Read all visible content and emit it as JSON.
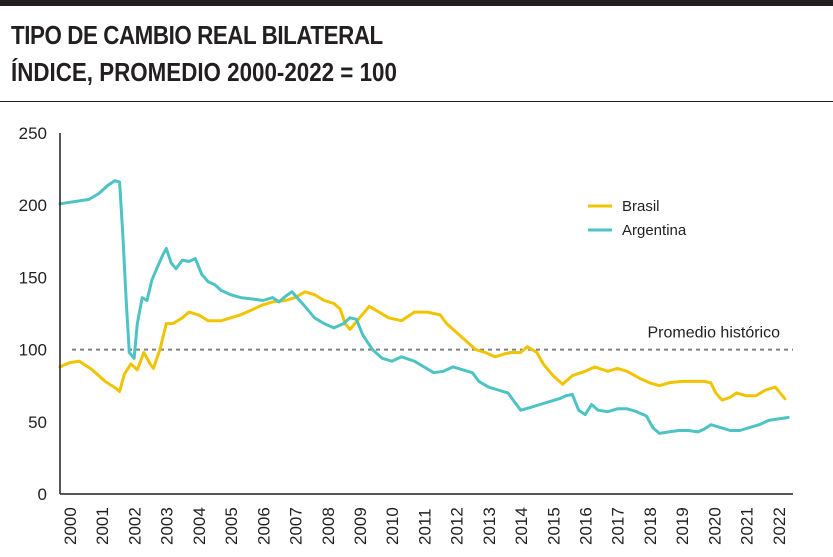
{
  "header": {
    "title": "TIPO DE CAMBIO REAL BILATERAL",
    "subtitle": "ÍNDICE, PROMEDIO 2000-2022 = 100"
  },
  "colors": {
    "brasil": "#f2c300",
    "argentina": "#4ec3c3",
    "axis": "#231f20",
    "reference": "#808080"
  },
  "chart_data": {
    "type": "line",
    "title": "TIPO DE CAMBIO REAL BILATERAL",
    "subtitle": "ÍNDICE, PROMEDIO 2000-2022 = 100",
    "xlabel": "",
    "ylabel": "",
    "xlim": [
      2000,
      2022.75
    ],
    "ylim": [
      0,
      250
    ],
    "yticks": [
      0,
      50,
      100,
      150,
      200,
      250
    ],
    "xticks": [
      "2000",
      "2001",
      "2002",
      "2003",
      "2004",
      "2005",
      "2006",
      "2007",
      "2008",
      "2009",
      "2010",
      "2011",
      "2012",
      "2013",
      "2014",
      "2015",
      "2016",
      "2017",
      "2018",
      "2019",
      "2020",
      "2021",
      "2022"
    ],
    "grid": false,
    "legend_position": "top-right",
    "reference_line": {
      "value": 100,
      "label": "Promedio histórico"
    },
    "series": [
      {
        "name": "Brasil",
        "color": "#f2c300",
        "points": [
          [
            2000.0,
            88
          ],
          [
            2000.3,
            91
          ],
          [
            2000.6,
            92
          ],
          [
            2001.0,
            86
          ],
          [
            2001.4,
            78
          ],
          [
            2001.75,
            73
          ],
          [
            2001.85,
            71
          ],
          [
            2002.0,
            83
          ],
          [
            2002.2,
            90
          ],
          [
            2002.4,
            86
          ],
          [
            2002.6,
            98
          ],
          [
            2002.8,
            90
          ],
          [
            2002.9,
            87
          ],
          [
            2003.1,
            100
          ],
          [
            2003.3,
            118
          ],
          [
            2003.5,
            118
          ],
          [
            2003.8,
            122
          ],
          [
            2004.0,
            126
          ],
          [
            2004.3,
            124
          ],
          [
            2004.6,
            120
          ],
          [
            2005.0,
            120
          ],
          [
            2005.3,
            122
          ],
          [
            2005.6,
            124
          ],
          [
            2006.0,
            128
          ],
          [
            2006.3,
            131
          ],
          [
            2006.6,
            133
          ],
          [
            2007.0,
            134
          ],
          [
            2007.3,
            136
          ],
          [
            2007.6,
            140
          ],
          [
            2007.9,
            138
          ],
          [
            2008.2,
            134
          ],
          [
            2008.5,
            132
          ],
          [
            2008.7,
            128
          ],
          [
            2008.85,
            118
          ],
          [
            2009.0,
            114
          ],
          [
            2009.3,
            122
          ],
          [
            2009.6,
            130
          ],
          [
            2009.9,
            126
          ],
          [
            2010.2,
            122
          ],
          [
            2010.6,
            120
          ],
          [
            2011.0,
            126
          ],
          [
            2011.4,
            126
          ],
          [
            2011.8,
            124
          ],
          [
            2012.0,
            118
          ],
          [
            2012.3,
            112
          ],
          [
            2012.6,
            106
          ],
          [
            2012.9,
            100
          ],
          [
            2013.2,
            98
          ],
          [
            2013.5,
            95
          ],
          [
            2013.8,
            97
          ],
          [
            2014.0,
            98
          ],
          [
            2014.3,
            98
          ],
          [
            2014.5,
            102
          ],
          [
            2014.8,
            98
          ],
          [
            2015.0,
            90
          ],
          [
            2015.3,
            82
          ],
          [
            2015.6,
            76
          ],
          [
            2015.9,
            82
          ],
          [
            2016.3,
            85
          ],
          [
            2016.6,
            88
          ],
          [
            2017.0,
            85
          ],
          [
            2017.3,
            87
          ],
          [
            2017.6,
            85
          ],
          [
            2018.0,
            80
          ],
          [
            2018.3,
            77
          ],
          [
            2018.6,
            75
          ],
          [
            2018.9,
            77
          ],
          [
            2019.3,
            78
          ],
          [
            2019.6,
            78
          ],
          [
            2020.0,
            78
          ],
          [
            2020.2,
            77
          ],
          [
            2020.35,
            70
          ],
          [
            2020.55,
            65
          ],
          [
            2020.8,
            67
          ],
          [
            2021.0,
            70
          ],
          [
            2021.3,
            68
          ],
          [
            2021.6,
            68
          ],
          [
            2021.9,
            72
          ],
          [
            2022.2,
            74
          ],
          [
            2022.5,
            66
          ]
        ]
      },
      {
        "name": "Argentina",
        "color": "#4ec3c3",
        "points": [
          [
            2000.0,
            201
          ],
          [
            2000.3,
            202
          ],
          [
            2000.6,
            203
          ],
          [
            2000.9,
            204
          ],
          [
            2001.2,
            208
          ],
          [
            2001.5,
            214
          ],
          [
            2001.7,
            217
          ],
          [
            2001.85,
            216
          ],
          [
            2001.95,
            180
          ],
          [
            2002.05,
            135
          ],
          [
            2002.15,
            98
          ],
          [
            2002.3,
            94
          ],
          [
            2002.4,
            118
          ],
          [
            2002.55,
            136
          ],
          [
            2002.7,
            134
          ],
          [
            2002.85,
            148
          ],
          [
            2003.0,
            156
          ],
          [
            2003.2,
            166
          ],
          [
            2003.3,
            170
          ],
          [
            2003.45,
            160
          ],
          [
            2003.6,
            156
          ],
          [
            2003.8,
            162
          ],
          [
            2004.0,
            161
          ],
          [
            2004.2,
            163
          ],
          [
            2004.4,
            152
          ],
          [
            2004.6,
            147
          ],
          [
            2004.8,
            145
          ],
          [
            2005.0,
            141
          ],
          [
            2005.3,
            138
          ],
          [
            2005.6,
            136
          ],
          [
            2006.0,
            135
          ],
          [
            2006.3,
            134
          ],
          [
            2006.6,
            136
          ],
          [
            2006.8,
            133
          ],
          [
            2007.0,
            137
          ],
          [
            2007.2,
            140
          ],
          [
            2007.4,
            135
          ],
          [
            2007.6,
            130
          ],
          [
            2007.9,
            122
          ],
          [
            2008.2,
            118
          ],
          [
            2008.5,
            115
          ],
          [
            2008.8,
            118
          ],
          [
            2009.0,
            122
          ],
          [
            2009.2,
            121
          ],
          [
            2009.4,
            110
          ],
          [
            2009.7,
            100
          ],
          [
            2010.0,
            94
          ],
          [
            2010.3,
            92
          ],
          [
            2010.6,
            95
          ],
          [
            2011.0,
            92
          ],
          [
            2011.3,
            88
          ],
          [
            2011.6,
            84
          ],
          [
            2011.9,
            85
          ],
          [
            2012.2,
            88
          ],
          [
            2012.5,
            86
          ],
          [
            2012.8,
            84
          ],
          [
            2013.0,
            78
          ],
          [
            2013.3,
            74
          ],
          [
            2013.6,
            72
          ],
          [
            2013.9,
            70
          ],
          [
            2014.1,
            64
          ],
          [
            2014.3,
            58
          ],
          [
            2014.6,
            60
          ],
          [
            2014.9,
            62
          ],
          [
            2015.2,
            64
          ],
          [
            2015.5,
            66
          ],
          [
            2015.7,
            68
          ],
          [
            2015.9,
            69
          ],
          [
            2016.1,
            58
          ],
          [
            2016.3,
            55
          ],
          [
            2016.5,
            62
          ],
          [
            2016.7,
            58
          ],
          [
            2017.0,
            57
          ],
          [
            2017.3,
            59
          ],
          [
            2017.6,
            59
          ],
          [
            2017.9,
            57
          ],
          [
            2018.2,
            54
          ],
          [
            2018.4,
            46
          ],
          [
            2018.6,
            42
          ],
          [
            2018.9,
            43
          ],
          [
            2019.2,
            44
          ],
          [
            2019.5,
            44
          ],
          [
            2019.8,
            43
          ],
          [
            2020.0,
            45
          ],
          [
            2020.2,
            48
          ],
          [
            2020.5,
            46
          ],
          [
            2020.8,
            44
          ],
          [
            2021.1,
            44
          ],
          [
            2021.4,
            46
          ],
          [
            2021.7,
            48
          ],
          [
            2022.0,
            51
          ],
          [
            2022.3,
            52
          ],
          [
            2022.6,
            53
          ]
        ]
      }
    ]
  }
}
